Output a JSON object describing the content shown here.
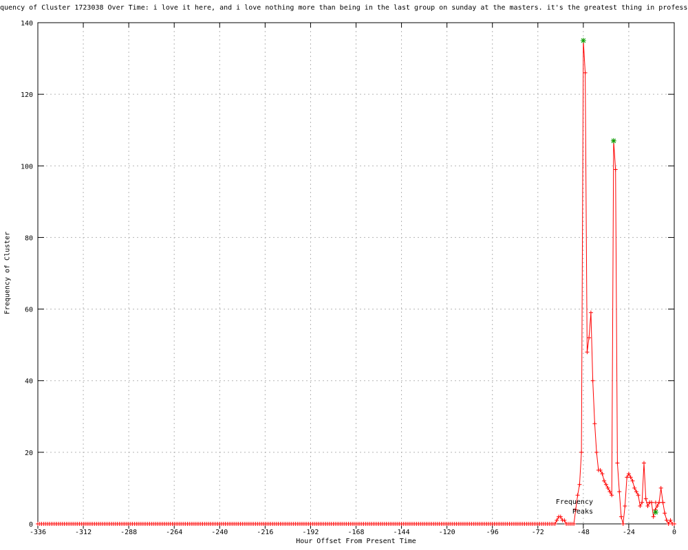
{
  "chart_data": {
    "type": "line",
    "title": "quency of Cluster 1723038 Over Time: i love it here, and i love nothing more than being in the last group on sunday at the masters. it's the greatest thing in professi",
    "xlabel": "Hour Offset From Present Time",
    "ylabel": "Frequency of Cluster",
    "xlim": [
      -336,
      0
    ],
    "ylim": [
      0,
      140
    ],
    "xticks": [
      -336,
      -312,
      -288,
      -264,
      -240,
      -216,
      -192,
      -168,
      -144,
      -120,
      -96,
      -72,
      -48,
      -24,
      0
    ],
    "yticks": [
      0,
      20,
      40,
      60,
      80,
      100,
      120,
      140
    ],
    "grid": true,
    "legend_position": "bottom-right",
    "colors": {
      "frequency": "#ff0000",
      "peaks": "#00a000",
      "grid": "#b3b3b3",
      "axis": "#000000",
      "background": "#ffffff"
    },
    "series": [
      {
        "name": "Frequency",
        "marker": "plus",
        "color_key": "frequency",
        "x_encoding": {
          "start": -336,
          "end": 0,
          "step": 1,
          "default": 0
        },
        "nonzero": {
          "-62": 1,
          "-61": 2,
          "-60": 2,
          "-59": 1,
          "-58": 1,
          "-52": 4,
          "-51": 8,
          "-50": 11,
          "-49": 20,
          "-48": 135,
          "-47": 126,
          "-46": 48,
          "-45": 52,
          "-44": 59,
          "-43": 40,
          "-42": 28,
          "-41": 20,
          "-40": 15,
          "-39": 15,
          "-38": 14,
          "-37": 12,
          "-36": 11,
          "-35": 10,
          "-34": 9,
          "-33": 8,
          "-32": 107,
          "-31": 99,
          "-30": 17,
          "-29": 9,
          "-28": 2,
          "-26": 5,
          "-25": 13,
          "-24": 14,
          "-23": 13,
          "-22": 12,
          "-21": 10,
          "-20": 9,
          "-19": 8,
          "-18": 5,
          "-17": 6,
          "-16": 17,
          "-15": 7,
          "-14": 5,
          "-13": 6,
          "-12": 6,
          "-11": 2,
          "-10": 4,
          "-9": 5,
          "-8": 6,
          "-7": 10,
          "-6": 6,
          "-5": 3,
          "-4": 1,
          "-2": 1
        }
      },
      {
        "name": "Peaks",
        "marker": "asterisk",
        "color_key": "peaks",
        "points": [
          {
            "x": -48,
            "y": 135
          },
          {
            "x": -32,
            "y": 107
          }
        ]
      }
    ]
  }
}
